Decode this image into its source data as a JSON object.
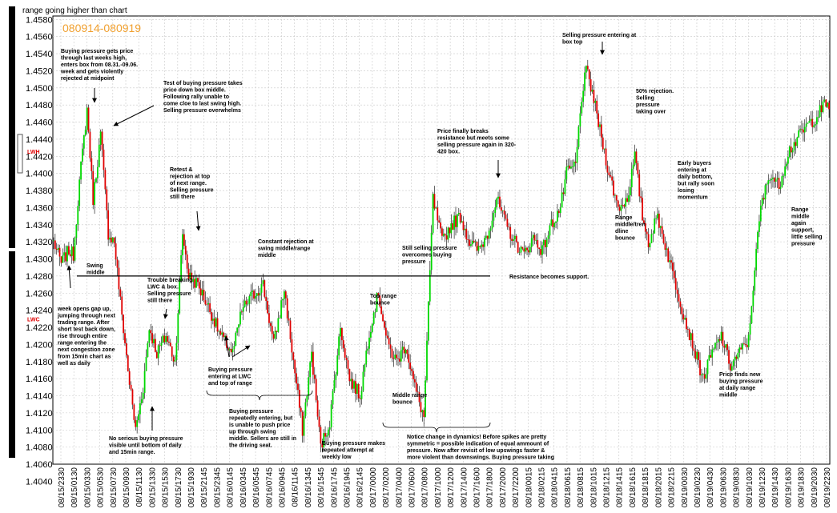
{
  "chart_data": {
    "type": "candlestick",
    "title": "range going higher than chart",
    "period_label": "080914-080919",
    "ylim": [
      1.406,
      1.4584
    ],
    "yticks": [
      "1.4580",
      "1.4560",
      "1.4540",
      "1.4520",
      "1.4500",
      "1.4480",
      "1.4460",
      "1.4440",
      "1.4420",
      "1.4400",
      "1.4380",
      "1.4360",
      "1.4340",
      "1.4320",
      "1.4300",
      "1.4280",
      "1.4260",
      "1.4240",
      "1.4220",
      "1.4200",
      "1.4180",
      "1.4160",
      "1.4140",
      "1.4120",
      "1.4100",
      "1.4080",
      "1.4060",
      "1.4040"
    ],
    "xticks": [
      "08/15/2330",
      "08/15/0130",
      "08/15/0330",
      "08/15/0530",
      "08/15/0730",
      "08/15/0930",
      "08/15/1130",
      "08/15/1330",
      "08/15/1530",
      "08/15/1730",
      "08/15/1930",
      "08/15/2145",
      "08/15/2345",
      "08/16/0145",
      "08/16/0345",
      "08/16/0545",
      "08/16/0745",
      "08/16/0945",
      "08/16/1145",
      "08/16/1345",
      "08/16/1545",
      "08/16/1745",
      "08/16/1945",
      "08/16/2145",
      "08/17/0000",
      "08/17/0200",
      "08/17/0400",
      "08/17/0600",
      "08/17/0800",
      "08/17/1000",
      "08/17/1200",
      "08/17/1400",
      "08/17/1600",
      "08/17/1800",
      "08/17/2000",
      "08/17/2200",
      "08/18/0015",
      "08/18/0215",
      "08/18/0415",
      "08/18/0615",
      "08/18/0815",
      "08/18/1015",
      "08/18/1215",
      "08/18/1415",
      "08/18/1615",
      "08/18/1815",
      "08/18/2015",
      "08/18/2215",
      "08/19/0030",
      "08/19/0230",
      "08/19/0430",
      "08/19/0630",
      "08/19/0830",
      "08/19/1030",
      "08/19/1230",
      "08/19/1430",
      "08/19/1630",
      "08/19/1830",
      "08/19/2030",
      "08/19/2230"
    ],
    "levels": [
      {
        "name": "LWH",
        "value": 1.4426
      },
      {
        "name": "LWC",
        "value": 1.423
      }
    ],
    "resistance_line": 1.428,
    "bullish_color": "#00d800",
    "bearish_color": "#e00000",
    "wick_color": "#000000",
    "grid": true,
    "path": [
      [
        0,
        1.432
      ],
      [
        5,
        1.4295
      ],
      [
        10,
        1.431
      ],
      [
        13,
        1.4305
      ],
      [
        17,
        1.439
      ],
      [
        22,
        1.4475
      ],
      [
        26,
        1.437
      ],
      [
        31,
        1.4445
      ],
      [
        36,
        1.433
      ],
      [
        40,
        1.432
      ],
      [
        44,
        1.425
      ],
      [
        49,
        1.417
      ],
      [
        54,
        1.41
      ],
      [
        59,
        1.415
      ],
      [
        63,
        1.422
      ],
      [
        68,
        1.419
      ],
      [
        74,
        1.421
      ],
      [
        80,
        1.418
      ],
      [
        85,
        1.433
      ],
      [
        89,
        1.428
      ],
      [
        95,
        1.427
      ],
      [
        103,
        1.424
      ],
      [
        110,
        1.421
      ],
      [
        118,
        1.419
      ],
      [
        124,
        1.424
      ],
      [
        130,
        1.4255
      ],
      [
        138,
        1.427
      ],
      [
        145,
        1.42
      ],
      [
        152,
        1.4265
      ],
      [
        158,
        1.418
      ],
      [
        164,
        1.41
      ],
      [
        170,
        1.419
      ],
      [
        176,
        1.408
      ],
      [
        182,
        1.411
      ],
      [
        189,
        1.422
      ],
      [
        195,
        1.416
      ],
      [
        202,
        1.414
      ],
      [
        208,
        1.4215
      ],
      [
        214,
        1.426
      ],
      [
        220,
        1.42
      ],
      [
        226,
        1.418
      ],
      [
        232,
        1.42
      ],
      [
        238,
        1.415
      ],
      [
        244,
        1.4115
      ],
      [
        250,
        1.437
      ],
      [
        256,
        1.432
      ],
      [
        262,
        1.434
      ],
      [
        268,
        1.435
      ],
      [
        274,
        1.432
      ],
      [
        280,
        1.431
      ],
      [
        286,
        1.433
      ],
      [
        292,
        1.437
      ],
      [
        298,
        1.434
      ],
      [
        304,
        1.432
      ],
      [
        310,
        1.4305
      ],
      [
        316,
        1.4325
      ],
      [
        322,
        1.431
      ],
      [
        328,
        1.434
      ],
      [
        334,
        1.436
      ],
      [
        338,
        1.44
      ],
      [
        344,
        1.441
      ],
      [
        348,
        1.449
      ],
      [
        351,
        1.452
      ],
      [
        355,
        1.4495
      ],
      [
        360,
        1.445
      ],
      [
        366,
        1.44
      ],
      [
        372,
        1.436
      ],
      [
        378,
        1.437
      ],
      [
        383,
        1.442
      ],
      [
        388,
        1.435
      ],
      [
        392,
        1.432
      ],
      [
        398,
        1.435
      ],
      [
        404,
        1.431
      ],
      [
        410,
        1.427
      ],
      [
        416,
        1.423
      ],
      [
        422,
        1.4195
      ],
      [
        428,
        1.416
      ],
      [
        434,
        1.419
      ],
      [
        440,
        1.421
      ],
      [
        446,
        1.4175
      ],
      [
        452,
        1.419
      ],
      [
        458,
        1.4205
      ],
      [
        462,
        1.429
      ],
      [
        466,
        1.436
      ],
      [
        472,
        1.44
      ],
      [
        478,
        1.4385
      ],
      [
        484,
        1.4425
      ],
      [
        490,
        1.444
      ],
      [
        496,
        1.4455
      ],
      [
        502,
        1.4465
      ],
      [
        508,
        1.448
      ],
      [
        511,
        1.448
      ]
    ],
    "annotations": [
      {
        "id": "a1",
        "lines": [
          "Buying pressure gets price",
          "through last weeks high,",
          "enters box from 08.31.-09.06.",
          "week and gets violently",
          "rejected at midpoint"
        ]
      },
      {
        "id": "a2",
        "lines": [
          "Test of buying pressure takes",
          "price down box middle.",
          "Following rally unable to",
          "come cloe to last swing high.",
          "Selling pressure overwhelms"
        ]
      },
      {
        "id": "a3",
        "lines": [
          "Retest &",
          "rejection at top",
          "of next range.",
          "Selling pressure",
          "still there"
        ]
      },
      {
        "id": "a4",
        "lines": [
          "Swing",
          "middle"
        ]
      },
      {
        "id": "a5",
        "lines": [
          "Trouble breaking",
          "LWC & box.",
          "Selling pressure",
          "still there"
        ]
      },
      {
        "id": "a6",
        "lines": [
          "Constant rejection at",
          "swing middle/range",
          "middle"
        ]
      },
      {
        "id": "a7",
        "lines": [
          "Still selling pressure",
          "overcomes buying",
          "pressure"
        ]
      },
      {
        "id": "a8",
        "lines": [
          "Price finally breaks",
          "resistance but meets some",
          "selling pressure again in 320-",
          "420 box."
        ]
      },
      {
        "id": "a9",
        "lines": [
          "Selling pressure entering at",
          "box top"
        ]
      },
      {
        "id": "a10",
        "lines": [
          "50% rejection.",
          "Selling",
          "pressure",
          "taking over"
        ]
      },
      {
        "id": "a11",
        "lines": [
          "Early buyers",
          "entering at",
          "daily bottom,",
          "but rally soon",
          "losing",
          "momentum"
        ]
      },
      {
        "id": "a12",
        "lines": [
          "Range",
          "middle/tren",
          "dline",
          "bounce"
        ]
      },
      {
        "id": "a13",
        "lines": [
          "Range",
          "middle",
          "again",
          "support,",
          "little selling",
          "pressure"
        ]
      },
      {
        "id": "a14",
        "lines": [
          "Resistance becomes support."
        ]
      },
      {
        "id": "a15",
        "lines": [
          "week opens gap up,",
          "jumping through next",
          "trading range. After",
          "short test back down,",
          "rise through entire",
          "range entering the",
          "next congestion zone",
          "from 15min chart as",
          "well as daily"
        ]
      },
      {
        "id": "a16",
        "lines": [
          "Buying pressure",
          "entering at LWC",
          "and top of range"
        ]
      },
      {
        "id": "a17",
        "lines": [
          "Top range",
          "bounce"
        ]
      },
      {
        "id": "a18",
        "lines": [
          "Buying pressure",
          "repeatedly entering, but",
          "is unable to push price",
          "up through swing",
          "middle. Sellers are still in",
          "the driving seat."
        ]
      },
      {
        "id": "a19",
        "lines": [
          "Middle range",
          "bounce"
        ]
      },
      {
        "id": "a20",
        "lines": [
          "No serious buying pressure",
          "visible until bottom of daily",
          "and 15min range."
        ]
      },
      {
        "id": "a21",
        "lines": [
          "Buying pressure makes",
          "repeated attempt at",
          "weekly low"
        ]
      },
      {
        "id": "a22",
        "lines": [
          "Notice change in dynamics! Before spikes are pretty",
          "symmetric = possible indication of equal ammount of",
          "pressure. Now after revisit of low upswings faster &",
          "more violent than downswings. Buying pressure taking"
        ]
      },
      {
        "id": "a23",
        "lines": [
          "Price finds new",
          "buying pressure",
          "at daily range",
          "middle"
        ]
      }
    ]
  }
}
